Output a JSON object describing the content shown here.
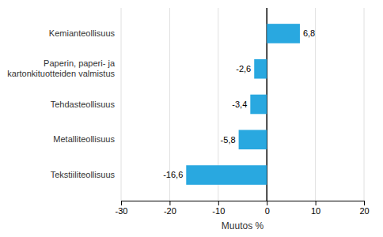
{
  "chart_data": {
    "type": "bar",
    "orientation": "horizontal",
    "xlabel": "Muutos %",
    "categories": [
      "Tekstiiliteollisuus",
      "Metalliteollisuus",
      "Tehdasteollisuus",
      "Paperin, paperi- ja kartonkituotteiden valmistus",
      "Kemianteollisuus"
    ],
    "values": [
      -16.6,
      -5.8,
      -3.4,
      -2.6,
      6.8
    ],
    "value_labels": [
      "-16,6",
      "-5,8",
      "-3,4",
      "-2,6",
      "6,8"
    ],
    "color": "#29a8e0",
    "xlim": [
      -30,
      20
    ],
    "xticks": [
      -30,
      -20,
      -10,
      0,
      10,
      20
    ],
    "grid": true,
    "data_labels": true
  }
}
